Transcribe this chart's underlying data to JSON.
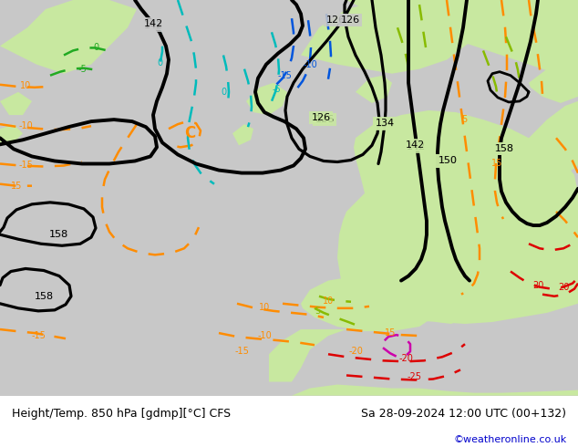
{
  "title_left": "Height/Temp. 850 hPa [gdmp][°C] CFS",
  "title_right": "Sa 28-09-2024 12:00 UTC (00+132)",
  "credit": "©weatheronline.co.uk",
  "bg_gray": "#c8c8c8",
  "bg_green": "#c8e8a0",
  "label_fontsize": 9,
  "credit_color": "#0000cc"
}
